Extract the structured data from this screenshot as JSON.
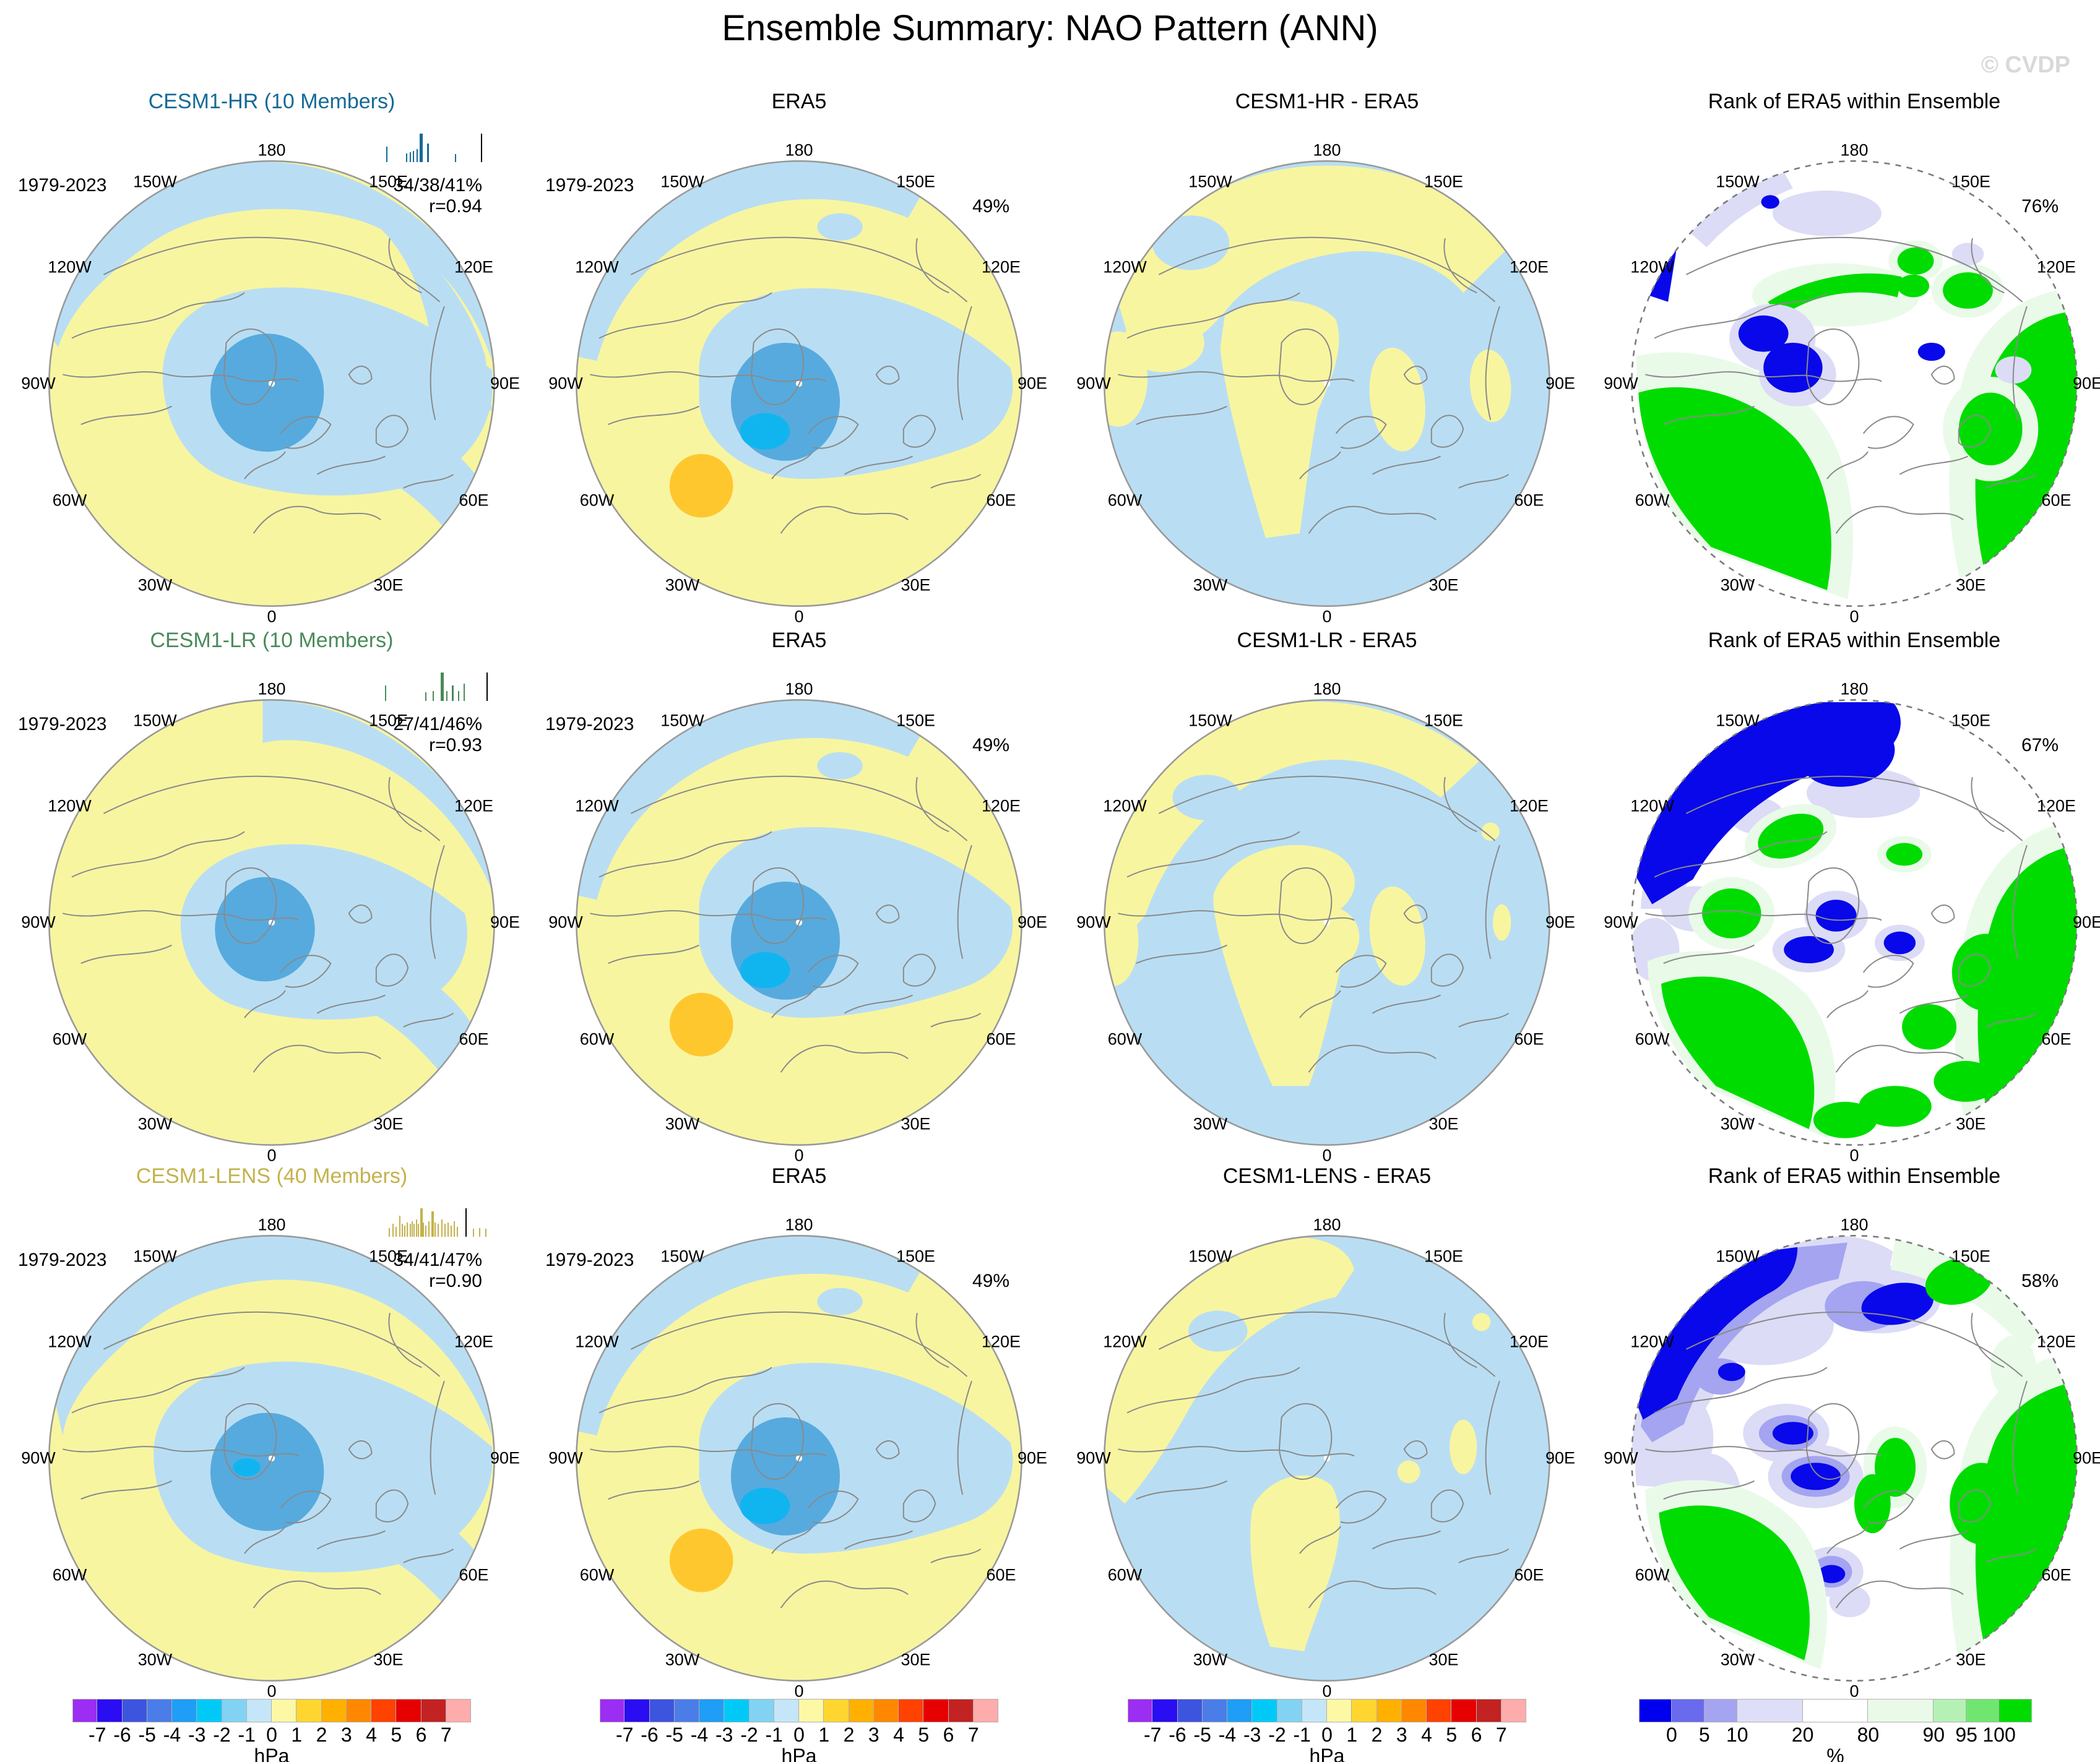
{
  "header": {
    "title": "Ensemble Summary: NAO Pattern (ANN)",
    "watermark": "© CVDP"
  },
  "map_labels": [
    "180",
    "150E",
    "120E",
    "90E",
    "60E",
    "30E",
    "0",
    "30W",
    "60W",
    "90W",
    "120W",
    "150W"
  ],
  "rows": [
    {
      "model": {
        "title": "CESM1-HR (10 Members)",
        "title_color": "#156a96",
        "period": "1979-2023",
        "stats_pct": "34/38/41%",
        "stats_r": "r=0.94",
        "rug": {
          "color": "#156a96",
          "obs_pos": 0.93,
          "ticks": [
            [
              0.03,
              0.55,
              2
            ],
            [
              0.22,
              0.3,
              2
            ],
            [
              0.255,
              0.35,
              2
            ],
            [
              0.285,
              0.4,
              2
            ],
            [
              0.315,
              0.45,
              2
            ],
            [
              0.345,
              1.0,
              5
            ],
            [
              0.42,
              0.65,
              3
            ],
            [
              0.68,
              0.28,
              2
            ]
          ]
        }
      },
      "era5": {
        "title": "ERA5",
        "period": "1979-2023",
        "pct": "49%"
      },
      "diff": {
        "title": "CESM1-HR - ERA5"
      },
      "rank": {
        "title": "Rank of ERA5 within Ensemble",
        "pct": "76%"
      }
    },
    {
      "model": {
        "title": "CESM1-LR (10 Members)",
        "title_color": "#4a8a5a",
        "period": "1979-2023",
        "stats_pct": "27/41/46%",
        "stats_r": "r=0.93",
        "rug": {
          "color": "#4a8a5a",
          "obs_pos": 0.985,
          "ticks": [
            [
              0.02,
              0.55,
              2
            ],
            [
              0.4,
              0.3,
              2
            ],
            [
              0.47,
              0.35,
              2
            ],
            [
              0.545,
              1.0,
              5
            ],
            [
              0.6,
              0.35,
              2
            ],
            [
              0.655,
              0.55,
              3
            ],
            [
              0.71,
              0.35,
              2
            ],
            [
              0.765,
              0.6,
              2
            ]
          ]
        }
      },
      "era5": {
        "title": "ERA5",
        "period": "1979-2023",
        "pct": "49%"
      },
      "diff": {
        "title": "CESM1-LR - ERA5"
      },
      "rank": {
        "title": "Rank of ERA5 within Ensemble",
        "pct": "67%"
      }
    },
    {
      "model": {
        "title": "CESM1-LENS (40 Members)",
        "title_color": "#c3b24d",
        "period": "1979-2023",
        "stats_pct": "34/41/47%",
        "stats_r": "r=0.90",
        "rug": {
          "color": "#c3b24d",
          "obs_pos": 0.78,
          "ticks": [
            [
              0.05,
              0.3,
              2
            ],
            [
              0.09,
              0.45,
              2
            ],
            [
              0.12,
              0.35,
              2
            ],
            [
              0.15,
              0.75,
              2
            ],
            [
              0.175,
              0.45,
              2
            ],
            [
              0.2,
              0.4,
              2
            ],
            [
              0.225,
              0.5,
              2
            ],
            [
              0.25,
              0.45,
              2
            ],
            [
              0.27,
              0.55,
              2
            ],
            [
              0.29,
              0.45,
              2
            ],
            [
              0.31,
              0.6,
              2
            ],
            [
              0.33,
              0.45,
              2
            ],
            [
              0.35,
              1.0,
              4
            ],
            [
              0.375,
              0.5,
              2
            ],
            [
              0.4,
              0.4,
              2
            ],
            [
              0.43,
              0.55,
              2
            ],
            [
              0.46,
              0.9,
              4
            ],
            [
              0.49,
              0.5,
              2
            ],
            [
              0.52,
              0.45,
              2
            ],
            [
              0.55,
              0.6,
              2
            ],
            [
              0.58,
              0.45,
              2
            ],
            [
              0.61,
              0.5,
              2
            ],
            [
              0.64,
              0.4,
              2
            ],
            [
              0.67,
              0.55,
              2
            ],
            [
              0.7,
              0.35,
              2
            ],
            [
              0.85,
              0.28,
              2
            ],
            [
              0.91,
              0.3,
              2
            ],
            [
              0.97,
              0.28,
              2
            ]
          ]
        }
      },
      "era5": {
        "title": "ERA5",
        "period": "1979-2023",
        "pct": "49%"
      },
      "diff": {
        "title": "CESM1-LENS - ERA5"
      },
      "rank": {
        "title": "Rank of ERA5 within Ensemble",
        "pct": "58%"
      }
    }
  ],
  "colorbars": {
    "hpa": {
      "unit": "hPa",
      "tick_labels": [
        "-7",
        "-6",
        "-5",
        "-4",
        "-3",
        "-2",
        "-1",
        "0",
        "1",
        "2",
        "3",
        "4",
        "5",
        "6",
        "7"
      ],
      "colors": [
        "#9c2df2",
        "#2a0df2",
        "#3d55de",
        "#4b7de8",
        "#1e9ef4",
        "#00c9f8",
        "#82d3f3",
        "#c4e6f8",
        "#fdf8a6",
        "#ffd630",
        "#ffb000",
        "#ff8800",
        "#ff4200",
        "#e60000",
        "#c22222",
        "#ffacac"
      ]
    },
    "rank": {
      "unit": "%",
      "tick_labels": [
        "0",
        "5",
        "10",
        "20",
        "80",
        "90",
        "95",
        "100"
      ],
      "colors": [
        "#0000ee",
        "#6a6aee",
        "#a4a4f1",
        "#dedef8",
        "#ffffff",
        "#e9fae9",
        "#b5f1b5",
        "#70e670",
        "#00dc00"
      ],
      "rel_widths": [
        1,
        1,
        1,
        2,
        2,
        2,
        1,
        1,
        1
      ]
    }
  },
  "map_palette": {
    "yellow": "#f8f5a1",
    "light_blue": "#b9def3",
    "mid_blue": "#57aade",
    "cyan": "#10b5f0",
    "orange": "#ffc72e",
    "rank_blue": "#0808ea",
    "rank_mid_blue": "#6a6aee",
    "rank_lavender": "#dcdcf6",
    "rank_mid_lavender": "#a4a4f1",
    "green": "#00dc00",
    "green_mid": "#70e670",
    "green_light": "#b5f1b5",
    "green_pale": "#e9fae9"
  },
  "chart_data": {
    "type": "map-grid",
    "projection": "north-polar-stereographic",
    "title": "Ensemble Summary: NAO Pattern (ANN)",
    "period": "1979-2023",
    "grid": {
      "rows": 3,
      "cols": 4
    },
    "column_kinds": [
      "ensemble-mean",
      "observations",
      "ensemble-minus-observations",
      "rank-of-observations"
    ],
    "units": {
      "pattern_maps": "hPa",
      "rank_maps": "%"
    },
    "rows": [
      {
        "ensemble": "CESM1-HR",
        "members": 10,
        "panel_titles": [
          "CESM1-HR (10 Members)",
          "ERA5",
          "CESM1-HR - ERA5",
          "Rank of ERA5 within Ensemble"
        ],
        "member_variance_range_pct": "34/38/41%",
        "pattern_correlation_r": 0.94,
        "era5_variance_pct": "49%",
        "area_mean_rank_pct": "76%"
      },
      {
        "ensemble": "CESM1-LR",
        "members": 10,
        "panel_titles": [
          "CESM1-LR (10 Members)",
          "ERA5",
          "CESM1-LR - ERA5",
          "Rank of ERA5 within Ensemble"
        ],
        "member_variance_range_pct": "27/41/46%",
        "pattern_correlation_r": 0.93,
        "era5_variance_pct": "49%",
        "area_mean_rank_pct": "67%"
      },
      {
        "ensemble": "CESM1-LENS",
        "members": 40,
        "panel_titles": [
          "CESM1-LENS (40 Members)",
          "ERA5",
          "CESM1-LENS - ERA5",
          "Rank of ERA5 within Ensemble"
        ],
        "member_variance_range_pct": "34/41/47%",
        "pattern_correlation_r": 0.9,
        "era5_variance_pct": "49%",
        "area_mean_rank_pct": "58%"
      }
    ],
    "colorbar_hpa_ticks": [
      -7,
      -6,
      -5,
      -4,
      -3,
      -2,
      -1,
      0,
      1,
      2,
      3,
      4,
      5,
      6,
      7
    ],
    "colorbar_rank_ticks": [
      0,
      5,
      10,
      20,
      80,
      90,
      95,
      100
    ],
    "longitude_labels_deg": [
      "180",
      "150E",
      "120E",
      "90E",
      "60E",
      "30E",
      "0",
      "30W",
      "60W",
      "90W",
      "120W",
      "150W"
    ]
  }
}
